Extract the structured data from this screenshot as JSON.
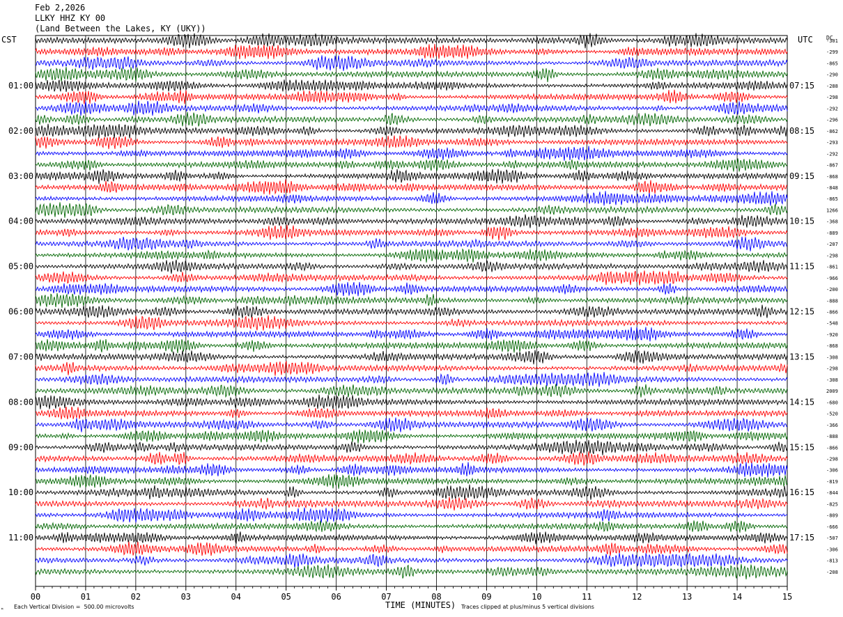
{
  "header": {
    "date": "Feb 2,2026",
    "station": "LLKY HHZ KY 00",
    "location": "(Land Between the Lakes, KY (UKY))"
  },
  "left_timezone": "CST",
  "right_timezone": "UTC",
  "dc_label": "DC",
  "footer": {
    "scale_note": "Each Vertical Division =  500.00 microvolts",
    "xlabel": "TIME (MINUTES)",
    "clip_note": "Traces clipped at plus/minus 5 vertical divisions",
    "logo": "ᴹ"
  },
  "chart_data": {
    "type": "line",
    "description_kind": "helicorder seismogram",
    "x_ticks": [
      "00",
      "01",
      "02",
      "03",
      "04",
      "05",
      "06",
      "07",
      "08",
      "09",
      "10",
      "11",
      "12",
      "13",
      "14",
      "15"
    ],
    "xlim": [
      0,
      15
    ],
    "trace_minutes": 15,
    "trace_count": 48,
    "trace_colors": [
      "#000000",
      "#ff0000",
      "#0000ff",
      "#006600"
    ],
    "left_hour_labels": [
      "01:00",
      "02:00",
      "03:00",
      "04:00",
      "05:00",
      "06:00",
      "07:00",
      "08:00",
      "09:00",
      "10:00",
      "11:00"
    ],
    "right_hour_labels": [
      "07:15",
      "08:15",
      "09:15",
      "10:15",
      "11:15",
      "12:15",
      "13:15",
      "14:15",
      "15:15",
      "16:15",
      "17:15"
    ],
    "dc_offsets": [
      "-301",
      "-299",
      "-865",
      "-290",
      "-288",
      "-298",
      "-292",
      "-296",
      "-862",
      "-293",
      "-292",
      "-867",
      "-868",
      "-848",
      "-865",
      "1266",
      "-368",
      "-889",
      "-207",
      "-298",
      "-861",
      "-966",
      "-200",
      "-888",
      "-866",
      "-548",
      "-920",
      "-868",
      "-308",
      "-298",
      "-308",
      "2009",
      "-680",
      "-520",
      "-366",
      "-888",
      "-866",
      "-298",
      "-306",
      "-819",
      "-844",
      "-825",
      "-809",
      "-666",
      "-507",
      "-306",
      "-813",
      "-208"
    ]
  }
}
